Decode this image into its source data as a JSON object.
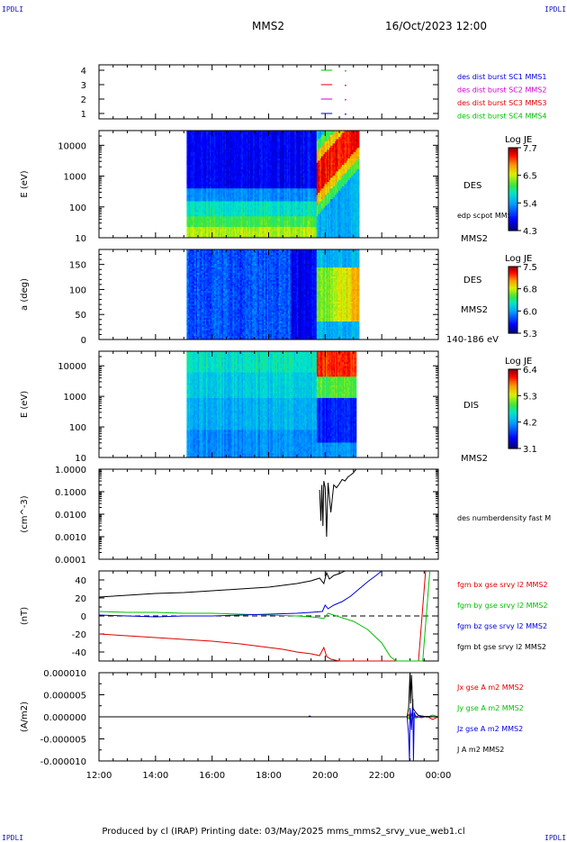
{
  "header": {
    "corner_tl": "IPDLI",
    "corner_tr": "IPDLI",
    "corner_bl": "IPDLI",
    "corner_br": "IPDLI",
    "title": "MMS2",
    "datetime": "16/Oct/2023 12:00"
  },
  "footer": {
    "text": "Produced by cl (IRAP)   Printing date: 03/May/2025   mms_mms2_srvy_vue_web1.cl"
  },
  "colors": {
    "black": "#000000",
    "red": "#e00000",
    "green": "#00c000",
    "blue": "#0000e0",
    "magenta": "#d000d0"
  },
  "chart_data": [
    {
      "type": "scatter",
      "name": "availability",
      "yticks": [
        "1",
        "2",
        "3",
        "4"
      ],
      "legend": [
        {
          "label": "des dist burst SC1 MMS1",
          "color": "#0000d8"
        },
        {
          "label": "des dist burst SC2 MMS2",
          "color": "#d000d0"
        },
        {
          "label": "des dist burst SC3 MMS3",
          "color": "#e00000"
        },
        {
          "label": "des dist burst SC4 MMS4",
          "color": "#00c000"
        }
      ],
      "marks": [
        {
          "y": 4,
          "x_start": 19.85,
          "x_end": 20.25,
          "color": "#00c000"
        },
        {
          "y": 3,
          "x_start": 19.85,
          "x_end": 20.25,
          "color": "#e00000"
        },
        {
          "y": 2,
          "x_start": 19.85,
          "x_end": 20.25,
          "color": "#d000d0"
        },
        {
          "y": 1,
          "x_start": 19.85,
          "x_end": 20.25,
          "color": "#0000d8"
        }
      ]
    },
    {
      "type": "heatmap",
      "name": "des_energy",
      "ylabel": "E (eV)",
      "yscale": "log",
      "ylim": [
        10,
        30000
      ],
      "yticks": [
        "10",
        "100",
        "1000",
        "10000"
      ],
      "instrument": "DES",
      "extra_label": "edp scpot MMS2",
      "sc_label": "MMS2",
      "colorbar": {
        "title": "Log JE",
        "ticks": [
          "7.7",
          "6.5",
          "5.4",
          "4.3"
        ]
      },
      "data_start": 15.1,
      "data_end": 21.2
    },
    {
      "type": "heatmap",
      "name": "des_pitch",
      "ylabel": "a (deg)",
      "ylim": [
        0,
        180
      ],
      "yticks": [
        "0",
        "50",
        "100",
        "150"
      ],
      "instrument": "DES",
      "sc_label": "MMS2",
      "energy_label": "140-186 eV",
      "colorbar": {
        "title": "Log JE",
        "ticks": [
          "7.5",
          "6.8",
          "6.0",
          "5.3"
        ]
      },
      "data_start": 15.1,
      "data_end": 21.2
    },
    {
      "type": "heatmap",
      "name": "dis_energy",
      "ylabel": "E (eV)",
      "yscale": "log",
      "ylim": [
        10,
        30000
      ],
      "yticks": [
        "10",
        "100",
        "1000",
        "10000"
      ],
      "instrument": "DIS",
      "sc_label": "MMS2",
      "colorbar": {
        "title": "Log JE",
        "ticks": [
          "6.4",
          "5.3",
          "4.2",
          "3.1"
        ]
      },
      "data_start": 15.1,
      "data_end": 21.1
    },
    {
      "type": "line",
      "name": "density",
      "ylabel": "(cm^-3)",
      "yscale": "log",
      "ylim": [
        0.0001,
        1.0
      ],
      "yticks": [
        "0.0001",
        "0.0010",
        "0.0100",
        "0.1000",
        "1.0000"
      ],
      "series": [
        {
          "name": "des numberdensity fast M",
          "color": "#000000",
          "x": [
            19.8,
            19.85,
            19.88,
            19.92,
            19.95,
            20.0,
            20.05,
            20.1,
            20.2,
            20.3,
            20.4,
            20.5,
            20.6,
            20.7,
            20.8,
            20.9,
            21.0,
            21.05,
            21.1
          ],
          "y": [
            0.12,
            0.005,
            0.2,
            0.003,
            0.3,
            0.15,
            0.001,
            0.25,
            0.012,
            0.2,
            0.15,
            0.22,
            0.35,
            0.3,
            0.45,
            0.55,
            0.7,
            0.85,
            1.0
          ]
        }
      ]
    },
    {
      "type": "line",
      "name": "magnetic_field",
      "ylabel": "(nT)",
      "ylim": [
        -50,
        50
      ],
      "yticks": [
        "-40",
        "-20",
        "0",
        "20",
        "40"
      ],
      "series": [
        {
          "name": "fgm bx gse srvy l2 MMS2",
          "color": "#e00000",
          "x": [
            12,
            13,
            14,
            15,
            16,
            17,
            18,
            18.5,
            19,
            19.5,
            19.8,
            19.95,
            20.05,
            20.2,
            20.5,
            20.8,
            21.0,
            23.3,
            23.55
          ],
          "y": [
            -20,
            -22,
            -24,
            -26,
            -28,
            -31,
            -35,
            -37,
            -40,
            -42,
            -44,
            -35,
            -45,
            -48,
            -55,
            -62,
            -70,
            -60,
            60
          ]
        },
        {
          "name": "fgm by gse srvy l2 MMS2",
          "color": "#00c000",
          "x": [
            12,
            13,
            14,
            15,
            16,
            17,
            18,
            19,
            19.5,
            19.8,
            19.95,
            20.1,
            20.3,
            20.6,
            21.0,
            21.5,
            22.0,
            22.3,
            22.5,
            23.45,
            23.7
          ],
          "y": [
            5,
            4,
            4,
            3,
            3,
            2,
            1,
            0,
            -1,
            -2,
            -3,
            3,
            1,
            -2,
            -6,
            -15,
            -30,
            -45,
            -60,
            -60,
            60
          ]
        },
        {
          "name": "fgm bz gse srvy l2 MMS2",
          "color": "#0000e0",
          "x": [
            12,
            13,
            14,
            15,
            16,
            17,
            18,
            19,
            19.5,
            19.9,
            20.0,
            20.1,
            20.3,
            20.6,
            20.9,
            21.2,
            21.5,
            21.8,
            22.0
          ],
          "y": [
            1,
            0,
            -1,
            0,
            0,
            1,
            2,
            3,
            4,
            5,
            12,
            8,
            12,
            16,
            22,
            30,
            38,
            45,
            52
          ]
        },
        {
          "name": "fgm bt gse srvy l2 MMS2",
          "color": "#000000",
          "x": [
            12,
            13,
            14,
            15,
            16,
            17,
            18,
            18.5,
            19,
            19.5,
            19.8,
            19.95,
            20.05,
            20.15,
            20.3,
            20.5,
            20.7
          ],
          "y": [
            21,
            23,
            25,
            26,
            28,
            30,
            32,
            34,
            36,
            39,
            42,
            36,
            48,
            41,
            45,
            47,
            50
          ]
        }
      ]
    },
    {
      "type": "line",
      "name": "current_density",
      "ylabel": "(A/m2)",
      "ylim": [
        -1e-05,
        1e-05
      ],
      "yticks": [
        "-0.000010",
        "-0.000005",
        "0.000000",
        "0.000005",
        "0.000010"
      ],
      "series": [
        {
          "name": "Jx gse A m2 MMS2",
          "color": "#e00000",
          "x": [
            12,
            22.9,
            22.95,
            23.0,
            23.05,
            23.1,
            23.2,
            23.4,
            23.6,
            23.8,
            24.0
          ],
          "y": [
            0,
            0,
            5e-07,
            -8e-07,
            6e-07,
            -4e-07,
            2e-07,
            -2e-07,
            1e-07,
            -6e-07,
            0
          ]
        },
        {
          "name": "Jy gse A m2 MMS2",
          "color": "#00c000",
          "x": [
            12,
            22.9,
            22.95,
            23.0,
            23.05,
            23.1,
            23.2,
            23.4,
            23.6,
            23.8,
            24.0
          ],
          "y": [
            0,
            0,
            -4e-07,
            8e-07,
            -1.2e-06,
            6e-07,
            -3e-07,
            2e-07,
            -1e-07,
            4e-07,
            0
          ]
        },
        {
          "name": "Jz gse A m2 MMS2",
          "color": "#0000e0",
          "x": [
            12,
            22.9,
            22.95,
            22.98,
            23.0,
            23.05,
            23.1,
            23.12,
            23.15,
            23.2,
            23.4,
            24.0
          ],
          "y": [
            0,
            0,
            -4e-06,
            -1e-05,
            2e-06,
            -3e-06,
            4e-06,
            -1e-05,
            1e-06,
            0,
            0,
            0
          ]
        },
        {
          "name": "J A m2 MMS2",
          "color": "#000000",
          "x": [
            12,
            19.4,
            19.45,
            19.5,
            22.9,
            22.95,
            23.0,
            23.02,
            23.05,
            23.1,
            23.15,
            23.2,
            23.3,
            23.5,
            24.0
          ],
          "y": [
            0,
            0,
            2e-07,
            0,
            0,
            2e-06,
            1e-05,
            3e-06,
            9.5e-06,
            2e-06,
            1.5e-06,
            1e-06,
            3e-07,
            1e-07,
            0
          ]
        }
      ]
    }
  ],
  "time_axis": {
    "range_hours": [
      12,
      24
    ],
    "tick_labels": [
      "12:00",
      "14:00",
      "16:00",
      "18:00",
      "20:00",
      "22:00",
      "00:00"
    ]
  }
}
